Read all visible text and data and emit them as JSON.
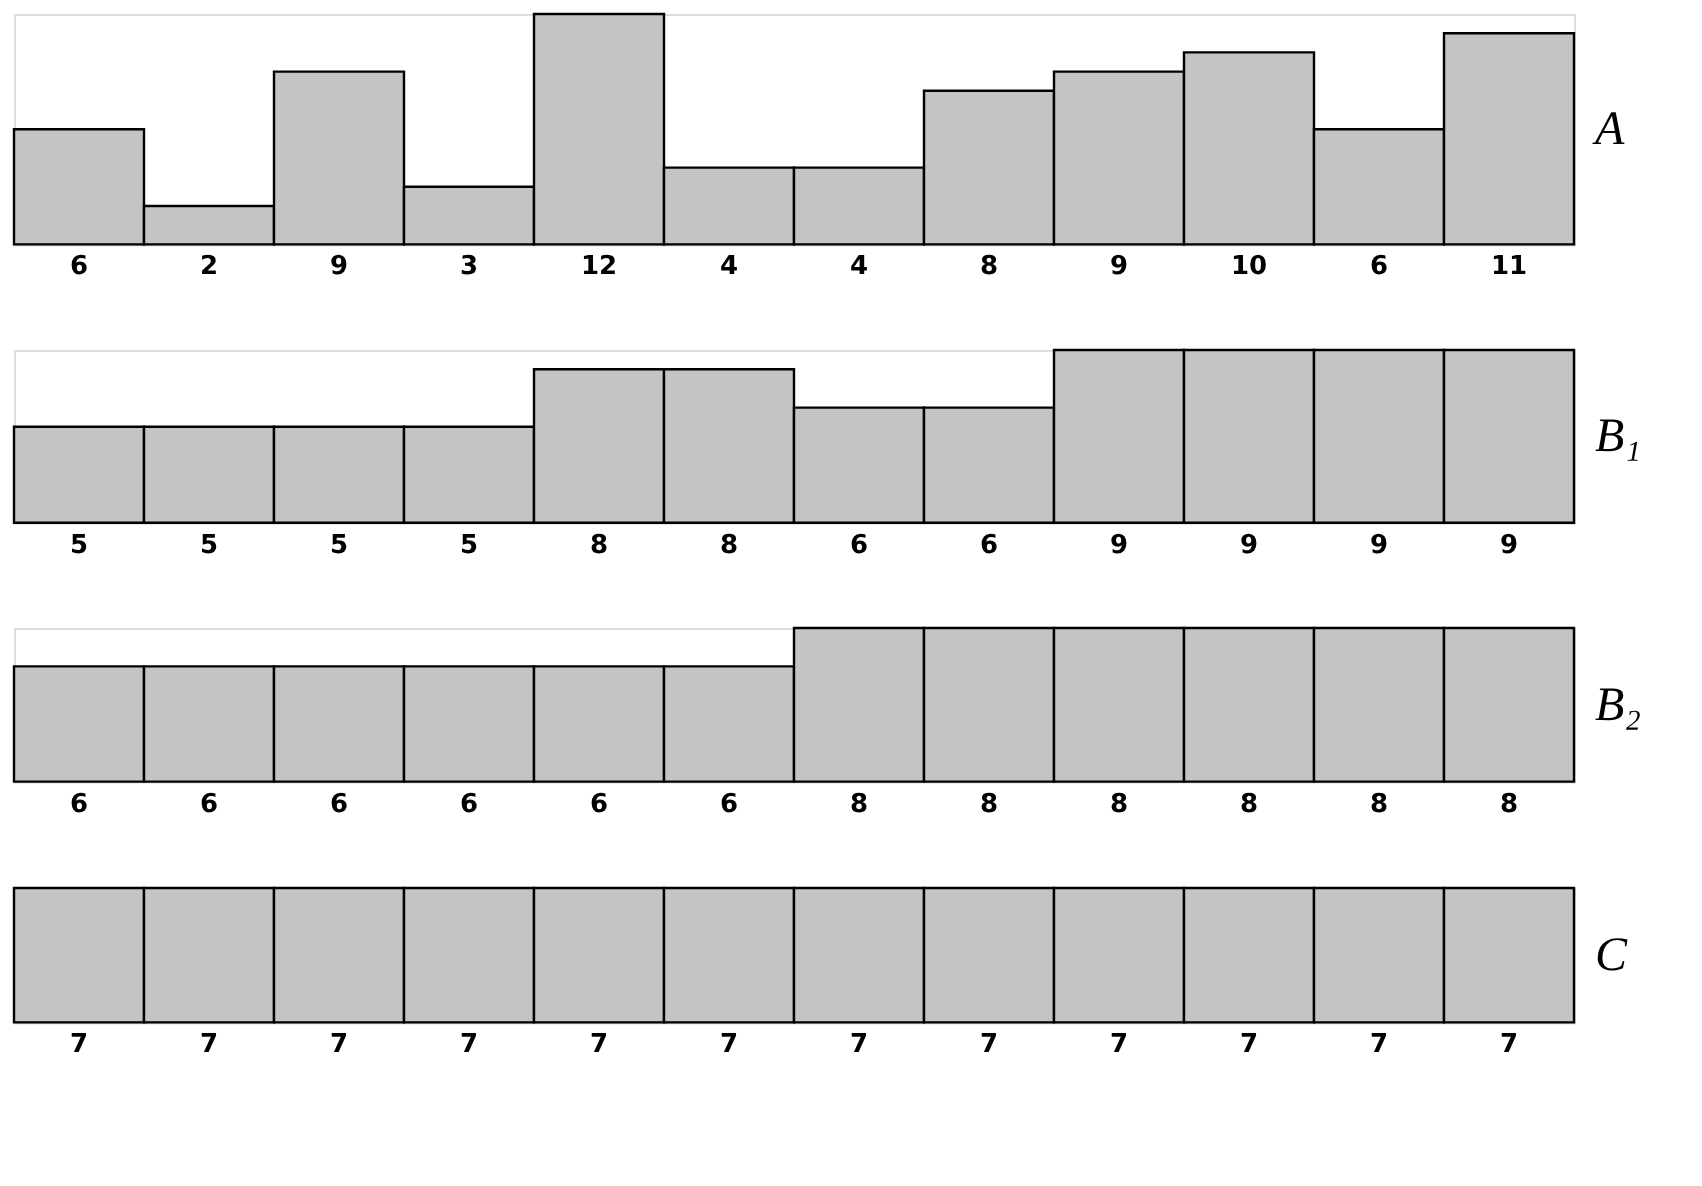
{
  "chart_data": [
    {
      "type": "bar",
      "ylabel": "A",
      "categories": [
        null,
        null,
        null,
        null,
        null,
        null,
        null,
        null,
        null,
        null,
        null,
        null
      ],
      "values": [
        6,
        2,
        9,
        3,
        12,
        4,
        4,
        8,
        9,
        10,
        6,
        11
      ],
      "color": "#c4c4c4",
      "ylim": [
        0,
        12
      ],
      "data_labels": true,
      "tick_labels": false
    },
    {
      "type": "bar",
      "ylabel": "B₁",
      "categories": [
        null,
        null,
        null,
        null,
        null,
        null,
        null,
        null,
        null,
        null,
        null,
        null
      ],
      "values": [
        5,
        5,
        5,
        5,
        8,
        8,
        6,
        6,
        9,
        9,
        9,
        9
      ],
      "color": "#c4c4c4",
      "ylim": [
        0,
        9
      ],
      "data_labels": true,
      "tick_labels": false
    },
    {
      "type": "bar",
      "ylabel": "B₂",
      "categories": [
        null,
        null,
        null,
        null,
        null,
        null,
        null,
        null,
        null,
        null,
        null,
        null
      ],
      "values": [
        6,
        6,
        6,
        6,
        6,
        6,
        8,
        8,
        8,
        8,
        8,
        8
      ],
      "color": "#c4c4c4",
      "ylim": [
        0,
        8
      ],
      "data_labels": true,
      "tick_labels": false
    },
    {
      "type": "bar",
      "ylabel": "C",
      "categories": [
        null,
        null,
        null,
        null,
        null,
        null,
        null,
        null,
        null,
        null,
        null,
        null
      ],
      "values": [
        7,
        7,
        7,
        7,
        7,
        7,
        7,
        7,
        7,
        7,
        7,
        7
      ],
      "color": "#c4c4c4",
      "ylim": [
        0,
        7
      ],
      "data_labels": true,
      "tick_labels": false
    }
  ]
}
